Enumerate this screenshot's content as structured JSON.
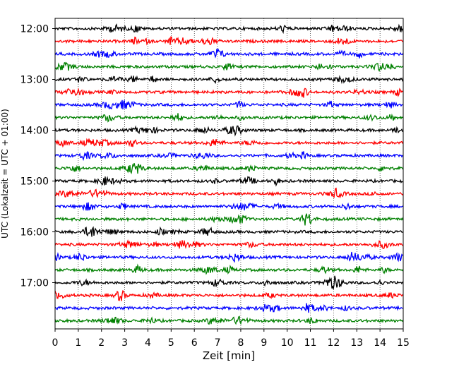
{
  "chart_data": {
    "type": "line",
    "title": "",
    "xlabel": "Zeit  [min]",
    "ylabel": "UTC (Lokalzeit = UTC + 01:00)",
    "xlim": [
      0,
      15
    ],
    "x_ticks": [
      "0",
      "1",
      "2",
      "3",
      "4",
      "5",
      "6",
      "7",
      "8",
      "9",
      "10",
      "11",
      "12",
      "13",
      "14",
      "15"
    ],
    "y_ticks": [
      "12:00",
      "13:00",
      "14:00",
      "15:00",
      "16:00",
      "17:00"
    ],
    "grid": "vertical dotted at each minute",
    "trace_interval_minutes": 15,
    "start_time": "12:00",
    "trace_count": 24,
    "colors": [
      "#000000",
      "#ff0000",
      "#0000ff",
      "#008000"
    ]
  }
}
